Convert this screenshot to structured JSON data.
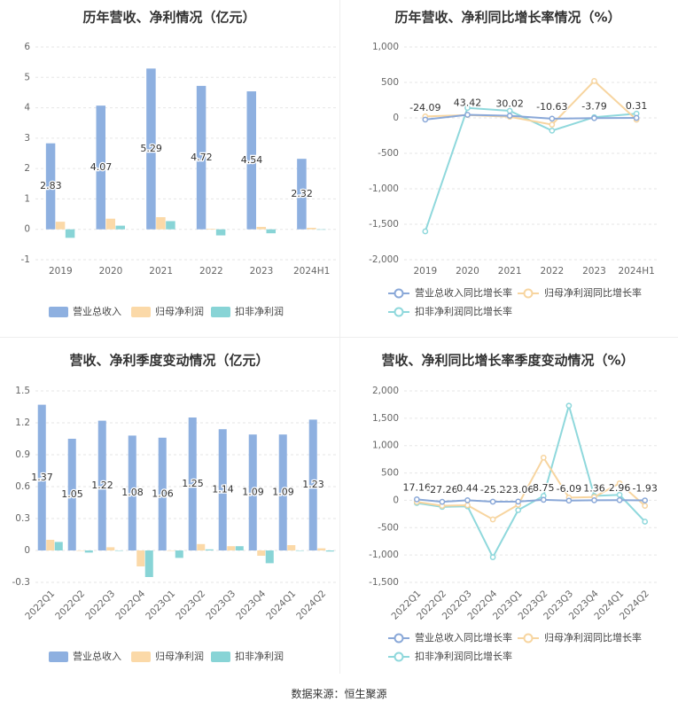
{
  "source_text": "数据来源：恒生聚源",
  "colors": {
    "revenue": "#8eb0e0",
    "net_profit": "#fbd9a8",
    "deducted_profit": "#88d4d6",
    "revenue_line": "#8aa8d8",
    "net_profit_line": "#f7d5a0",
    "deducted_line": "#8fd8dc",
    "axis_text": "#666666",
    "grid": "#e6e6e6",
    "title": "#333333"
  },
  "chart_data": [
    {
      "id": "annual-amount",
      "type": "bar",
      "title": "历年营收、净利情况（亿元）",
      "categories": [
        "2019",
        "2020",
        "2021",
        "2022",
        "2023",
        "2024H1"
      ],
      "ylim": [
        -1,
        6
      ],
      "yticks": [
        "-1",
        "0",
        "1",
        "2",
        "3",
        "4",
        "5",
        "6"
      ],
      "series": [
        {
          "name": "营业总收入",
          "values": [
            2.83,
            4.07,
            5.29,
            4.72,
            4.54,
            2.32
          ],
          "labels": [
            "2.83",
            "4.07",
            "5.29",
            "4.72",
            "4.54",
            "2.32"
          ]
        },
        {
          "name": "归母净利润",
          "values": [
            0.25,
            0.35,
            0.4,
            0.02,
            0.08,
            0.05
          ]
        },
        {
          "name": "扣非净利润",
          "values": [
            -0.28,
            0.12,
            0.27,
            -0.2,
            -0.13,
            -0.01
          ]
        }
      ],
      "legend": "bottom"
    },
    {
      "id": "annual-growth",
      "type": "line",
      "title": "历年营收、净利同比增长率情况（%）",
      "categories": [
        "2019",
        "2020",
        "2021",
        "2022",
        "2023",
        "2024H1"
      ],
      "ylim": [
        -2000,
        1000
      ],
      "yticks": [
        "-2,000",
        "-1,500",
        "-1,000",
        "-500",
        "0",
        "500",
        "1,000"
      ],
      "series": [
        {
          "name": "营业总收入同比增长率",
          "values": [
            -24.09,
            43.42,
            30.02,
            -10.63,
            -3.79,
            0.31
          ],
          "labels": [
            "-24.09",
            "43.42",
            "30.02",
            "-10.63",
            "-3.79",
            "0.31"
          ]
        },
        {
          "name": "归母净利润同比增长率",
          "values": [
            20,
            40,
            15,
            -95,
            520,
            -25
          ]
        },
        {
          "name": "扣非净利润同比增长率",
          "values": [
            -1600,
            140,
            100,
            -180,
            10,
            60
          ]
        }
      ],
      "legend": "bottom"
    },
    {
      "id": "quarterly-amount",
      "type": "bar",
      "title": "营收、净利季度变动情况（亿元）",
      "categories": [
        "2022Q1",
        "2022Q2",
        "2022Q3",
        "2022Q4",
        "2023Q1",
        "2023Q2",
        "2023Q3",
        "2023Q4",
        "2024Q1",
        "2024Q2"
      ],
      "ylim": [
        -0.3,
        1.5
      ],
      "yticks": [
        "-0.3",
        "0",
        "0.3",
        "0.6",
        "0.9",
        "1.2",
        "1.5"
      ],
      "series": [
        {
          "name": "营业总收入",
          "values": [
            1.37,
            1.05,
            1.22,
            1.08,
            1.06,
            1.25,
            1.14,
            1.09,
            1.09,
            1.23
          ],
          "labels": [
            "1.37",
            "1.05",
            "1.22",
            "1.08",
            "1.06",
            "1.25",
            "1.14",
            "1.09",
            "1.09",
            "1.23"
          ]
        },
        {
          "name": "归母净利润",
          "values": [
            0.1,
            0.0,
            0.03,
            -0.15,
            0.0,
            0.06,
            0.04,
            -0.05,
            0.05,
            0.02
          ]
        },
        {
          "name": "扣非净利润",
          "values": [
            0.08,
            -0.02,
            0.0,
            -0.25,
            -0.07,
            0.01,
            0.04,
            -0.12,
            0.0,
            -0.01
          ]
        }
      ],
      "legend": "bottom"
    },
    {
      "id": "quarterly-growth",
      "type": "line",
      "title": "营收、净利同比增长率季度变动情况（%）",
      "categories": [
        "2022Q1",
        "2022Q2",
        "2022Q3",
        "2022Q4",
        "2023Q1",
        "2023Q2",
        "2023Q3",
        "2023Q4",
        "2024Q1",
        "2024Q2"
      ],
      "ylim": [
        -1500,
        2000
      ],
      "yticks": [
        "-1,500",
        "-1,000",
        "-500",
        "0",
        "500",
        "1,000",
        "1,500",
        "2,000"
      ],
      "series": [
        {
          "name": "营业总收入同比增长率",
          "values": [
            17.16,
            -27.26,
            0.44,
            -25.2,
            -23.06,
            8.75,
            -6.09,
            1.36,
            2.96,
            -1.93
          ],
          "labels": [
            "17.16",
            "-27.26",
            "0.44",
            "-25.2",
            "-23.06",
            "8.75",
            "-6.09",
            "1.36",
            "2.96",
            "-1.93"
          ]
        },
        {
          "name": "归母净利润同比增长率",
          "values": [
            -30,
            -100,
            -90,
            -350,
            -80,
            780,
            50,
            60,
            310,
            -100
          ]
        },
        {
          "name": "扣非净利润同比增长率",
          "values": [
            -50,
            -120,
            -110,
            -1040,
            -180,
            80,
            1730,
            80,
            100,
            -390
          ]
        }
      ],
      "legend": "bottom"
    }
  ]
}
